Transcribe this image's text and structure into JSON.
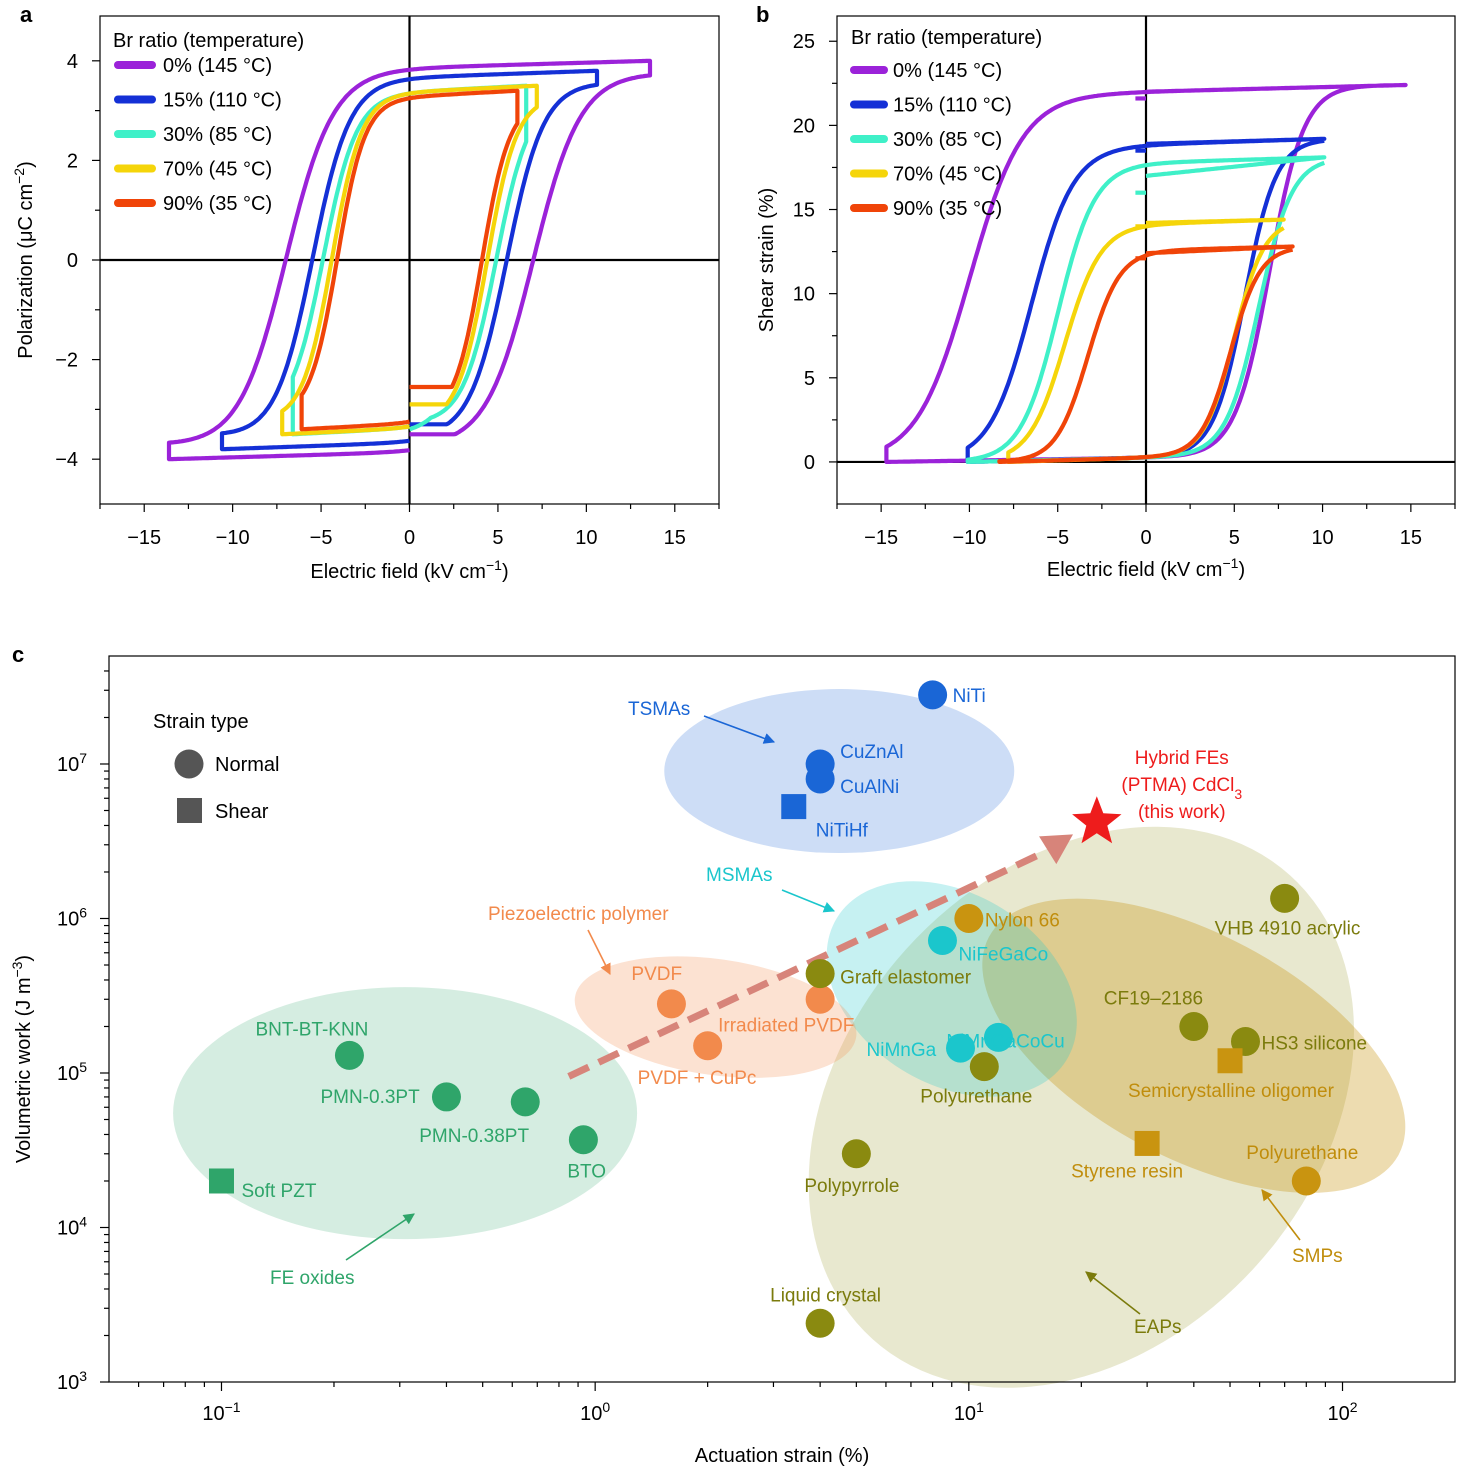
{
  "colors": {
    "0": "#9b22d9",
    "15": "#1430d6",
    "30": "#3ff0c8",
    "70": "#f5d50a",
    "90": "#f04408",
    "tsma": "#1a66d6",
    "msma": "#1bc6cc",
    "fe": "#2fa56a",
    "piezo": "#f28a4c",
    "eap": "#8a8a10",
    "smp": "#c99410",
    "star": "#ee1c1c",
    "arrow": "#d7847a"
  },
  "chart_data": [
    {
      "panel_label": "a",
      "type": "line",
      "xlabel": "Electric field (kV cm",
      "xlabel_sup": "−1",
      "xlabel_end": ")",
      "ylabel": "Polarization (μC cm",
      "ylabel_sup": "−2",
      "ylabel_end": ")",
      "xlim": [
        -17.5,
        17.5
      ],
      "ylim": [
        -4.9,
        4.9
      ],
      "xticks": [
        -15,
        -10,
        -5,
        0,
        5,
        10,
        15
      ],
      "xtick_labels": [
        "−15",
        "−10",
        "−5",
        "0",
        "5",
        "10",
        "15"
      ],
      "yticks": [
        -4,
        -2,
        0,
        2,
        4
      ],
      "ytick_labels": [
        "−4",
        "−2",
        "0",
        "2",
        "4"
      ],
      "legend_title": "Br ratio (temperature)",
      "legend_position": "top-left",
      "series": [
        {
          "name": "0% (145 °C)",
          "color_key": "0",
          "emax": 13.6,
          "pmax": 4.0,
          "ec": 7.0,
          "pr": 3.55,
          "start": -3.5
        },
        {
          "name": "15% (110 °C)",
          "color_key": "15",
          "emax": 10.6,
          "pmax": 3.8,
          "ec": 5.5,
          "pr": 3.4,
          "start": -3.3
        },
        {
          "name": "30% (85 °C)",
          "color_key": "30",
          "emax": 6.6,
          "pmax": 3.5,
          "ec": 4.9,
          "pr": 3.1,
          "start": -3.4
        },
        {
          "name": "70% (45 °C)",
          "color_key": "70",
          "emax": 7.2,
          "pmax": 3.5,
          "ec": 4.4,
          "pr": 3.0,
          "start": -2.9
        },
        {
          "name": "90% (35 °C)",
          "color_key": "90",
          "emax": 6.1,
          "pmax": 3.4,
          "ec": 4.1,
          "pr": 2.95,
          "start": -2.55
        }
      ]
    },
    {
      "panel_label": "b",
      "type": "line",
      "xlabel": "Electric field (kV cm",
      "xlabel_sup": "−1",
      "xlabel_end": ")",
      "ylabel": "Shear strain (%)",
      "xlim": [
        -17.5,
        17.5
      ],
      "ylim": [
        -2.5,
        26.5
      ],
      "xticks": [
        -15,
        -10,
        -5,
        0,
        5,
        10,
        15
      ],
      "xtick_labels": [
        "−15",
        "−10",
        "−5",
        "0",
        "5",
        "10",
        "15"
      ],
      "yticks": [
        0,
        5,
        10,
        15,
        20,
        25
      ],
      "ytick_labels": [
        "0",
        "5",
        "10",
        "15",
        "20",
        "25"
      ],
      "legend_title": "Br ratio (temperature)",
      "legend_position": "top-left",
      "series": [
        {
          "name": "0% (145 °C)",
          "color_key": "0",
          "emax": 14.7,
          "smax": 22.4,
          "s0": 21.6,
          "sdn": 22.0,
          "up": 7.0,
          "dn": -10.0
        },
        {
          "name": "15% (110 °C)",
          "color_key": "15",
          "emax": 10.1,
          "smax": 19.2,
          "s0": 18.5,
          "sdn": 18.9,
          "up": 5.6,
          "dn": -6.5
        },
        {
          "name": "30% (85 °C)",
          "color_key": "30",
          "emax": 10.1,
          "smax": 18.1,
          "s0": 16.0,
          "sdn": 17.0,
          "up": 6.4,
          "dn": -5.0
        },
        {
          "name": "70% (45 °C)",
          "color_key": "70",
          "emax": 7.8,
          "smax": 14.4,
          "s0": 14.0,
          "sdn": 14.2,
          "up": 5.0,
          "dn": -4.6
        },
        {
          "name": "90% (35 °C)",
          "color_key": "90",
          "emax": 8.3,
          "smax": 12.8,
          "s0": 12.1,
          "sdn": 12.4,
          "up": 4.8,
          "dn": -3.3
        }
      ]
    },
    {
      "panel_label": "c",
      "type": "scatter",
      "xlabel": "Actuation strain (%)",
      "ylabel": "Volumetric work (J m",
      "ylabel_sup": "−3",
      "ylabel_end": ")",
      "xscale": "log",
      "yscale": "log",
      "xlim": [
        0.05,
        200
      ],
      "ylim": [
        1000,
        50000000
      ],
      "xticks": [
        0.1,
        1,
        10,
        100
      ],
      "xtick_labels": [
        "10",
        "10",
        "10",
        "10"
      ],
      "xtick_exps": [
        "−1",
        "0",
        "1",
        "2"
      ],
      "yticks": [
        1000,
        10000,
        100000,
        1000000,
        10000000
      ],
      "ytick_labels": [
        "10",
        "10",
        "10",
        "10",
        "10"
      ],
      "ytick_exps": [
        "3",
        "4",
        "5",
        "6",
        "7"
      ],
      "legend_title": "Strain type",
      "legend_items": [
        "Normal",
        "Shear"
      ],
      "legend_position": "top-left",
      "regions": [
        {
          "label": "TSMAs",
          "color_key": "tsma"
        },
        {
          "label": "MSMAs",
          "color_key": "msma"
        },
        {
          "label": "Piezoelectric polymer",
          "color_key": "piezo"
        },
        {
          "label": "FE oxides",
          "color_key": "fe"
        },
        {
          "label": "EAPs",
          "color_key": "eap"
        },
        {
          "label": "SMPs",
          "color_key": "smp"
        }
      ],
      "points": [
        {
          "label": "NiTi",
          "x": 8,
          "y": 28000000,
          "shape": "circle",
          "color_key": "tsma"
        },
        {
          "label": "CuZnAl",
          "x": 4,
          "y": 10000000,
          "shape": "circle",
          "color_key": "tsma"
        },
        {
          "label": "CuAlNi",
          "x": 4,
          "y": 8000000,
          "shape": "circle",
          "color_key": "tsma"
        },
        {
          "label": "NiTiHf",
          "x": 3.4,
          "y": 5300000,
          "shape": "square",
          "color_key": "tsma"
        },
        {
          "label": "NiFeGaCo",
          "x": 8.5,
          "y": 720000,
          "shape": "circle",
          "color_key": "msma"
        },
        {
          "label": "NiMnGaCoCu",
          "x": 12,
          "y": 170000,
          "shape": "circle",
          "color_key": "msma"
        },
        {
          "label": "NiMnGa",
          "x": 9.5,
          "y": 145000,
          "shape": "circle",
          "color_key": "msma"
        },
        {
          "label": "PVDF",
          "x": 1.6,
          "y": 280000,
          "shape": "circle",
          "color_key": "piezo"
        },
        {
          "label": "Irradiated PVDF",
          "x": 4,
          "y": 300000,
          "shape": "circle",
          "color_key": "piezo"
        },
        {
          "label": "PVDF + CuPc",
          "x": 2,
          "y": 150000,
          "shape": "circle",
          "color_key": "piezo"
        },
        {
          "label": "BNT-BT-KNN",
          "x": 0.22,
          "y": 130000,
          "shape": "circle",
          "color_key": "fe"
        },
        {
          "label": "PMN-0.3PT",
          "x": 0.4,
          "y": 70000,
          "shape": "circle",
          "color_key": "fe"
        },
        {
          "label": "PMN-0.38PT",
          "x": 0.65,
          "y": 65000,
          "shape": "circle",
          "color_key": "fe"
        },
        {
          "label": "BTO",
          "x": 0.93,
          "y": 37000,
          "shape": "circle",
          "color_key": "fe"
        },
        {
          "label": "Soft PZT",
          "x": 0.1,
          "y": 20000,
          "shape": "square",
          "color_key": "fe"
        },
        {
          "label": "Graft elastomer",
          "x": 4,
          "y": 440000,
          "shape": "circle",
          "color_key": "eap"
        },
        {
          "label": "Polyurethane",
          "x": 11,
          "y": 110000,
          "shape": "circle",
          "color_key": "eap"
        },
        {
          "label": "VHB 4910 acrylic",
          "x": 70,
          "y": 1350000,
          "shape": "circle",
          "color_key": "eap"
        },
        {
          "label": "CF19–2186",
          "x": 40,
          "y": 200000,
          "shape": "circle",
          "color_key": "eap"
        },
        {
          "label": "HS3 silicone",
          "x": 55,
          "y": 160000,
          "shape": "circle",
          "color_key": "eap"
        },
        {
          "label": "Polypyrrole",
          "x": 5,
          "y": 30000,
          "shape": "circle",
          "color_key": "eap"
        },
        {
          "label": "Liquid crystal",
          "x": 4,
          "y": 2400,
          "shape": "circle",
          "color_key": "eap"
        },
        {
          "label": "Nylon 66",
          "x": 10,
          "y": 1000000,
          "shape": "circle",
          "color_key": "smp"
        },
        {
          "label": "Semicrystalline oligomer",
          "x": 50,
          "y": 120000,
          "shape": "square",
          "color_key": "smp"
        },
        {
          "label": "Styrene resin",
          "x": 30,
          "y": 35000,
          "shape": "square",
          "color_key": "smp"
        },
        {
          "label": "Polyurethane",
          "x": 80,
          "y": 20000,
          "shape": "circle",
          "color_key": "smp"
        }
      ],
      "this_work": {
        "line1": "Hybrid FEs",
        "line2": "(PTMA) CdCl",
        "line2_sub": "3",
        "line3": "(this work)",
        "x": 22,
        "y": 4200000
      }
    }
  ]
}
